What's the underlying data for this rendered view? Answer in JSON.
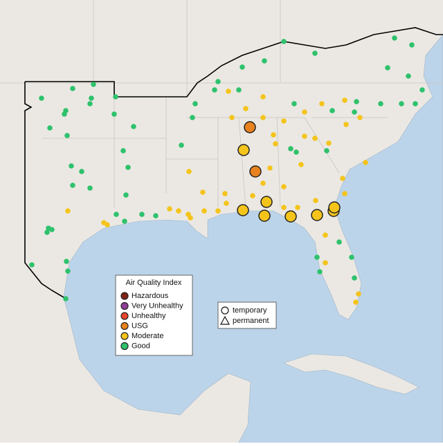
{
  "legend": {
    "title": "Air Quality Index",
    "items": [
      {
        "label": "Hazardous",
        "color": "#7e2318"
      },
      {
        "label": "Very Unhealthy",
        "color": "#8f3f97"
      },
      {
        "label": "Unhealthy",
        "color": "#e8452c"
      },
      {
        "label": "USG",
        "color": "#e8821e"
      },
      {
        "label": "Moderate",
        "color": "#f4c41b"
      },
      {
        "label": "Good",
        "color": "#2ec26c"
      }
    ]
  },
  "shape_legend": {
    "items": [
      "temporary",
      "permanent"
    ]
  }
}
